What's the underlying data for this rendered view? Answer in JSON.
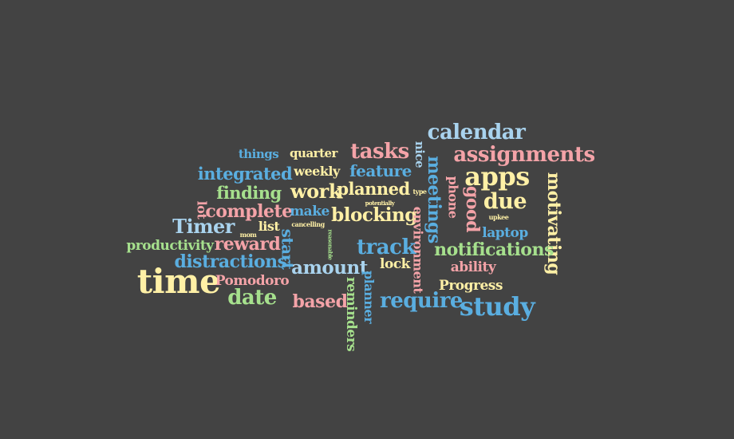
{
  "palette": {
    "background": "#434343",
    "pink": "#f4a3a8",
    "blue": "#5aaee0",
    "green": "#a6e08d",
    "yellow": "#fff0a6",
    "lightblue": "#a9d3ee"
  },
  "words": [
    {
      "text": "calendar",
      "color": "lightblue",
      "weight": 26,
      "rotated": false
    },
    {
      "text": "tasks",
      "color": "pink",
      "weight": 26,
      "rotated": false
    },
    {
      "text": "assignments",
      "color": "pink",
      "weight": 26,
      "rotated": false
    },
    {
      "text": "things",
      "color": "blue",
      "weight": 15,
      "rotated": false
    },
    {
      "text": "quarter",
      "color": "yellow",
      "weight": 15,
      "rotated": false
    },
    {
      "text": "nice",
      "color": "lightblue",
      "weight": 15,
      "rotated": true
    },
    {
      "text": "integrated",
      "color": "blue",
      "weight": 21,
      "rotated": false
    },
    {
      "text": "weekly",
      "color": "yellow",
      "weight": 16,
      "rotated": false
    },
    {
      "text": "feature",
      "color": "blue",
      "weight": 20,
      "rotated": false
    },
    {
      "text": "apps",
      "color": "yellow",
      "weight": 32,
      "rotated": false
    },
    {
      "text": "meetings",
      "color": "blue",
      "weight": 22,
      "rotated": true
    },
    {
      "text": "phone",
      "color": "pink",
      "weight": 16,
      "rotated": true
    },
    {
      "text": "good",
      "color": "pink",
      "weight": 22,
      "rotated": true
    },
    {
      "text": "motivating",
      "color": "yellow",
      "weight": 22,
      "rotated": true
    },
    {
      "text": "finding",
      "color": "green",
      "weight": 21,
      "rotated": false
    },
    {
      "text": "work",
      "color": "yellow",
      "weight": 24,
      "rotated": false
    },
    {
      "text": "planned",
      "color": "yellow",
      "weight": 21,
      "rotated": false
    },
    {
      "text": "type",
      "color": "yellow",
      "weight": 8,
      "rotated": false
    },
    {
      "text": "due",
      "color": "yellow",
      "weight": 27,
      "rotated": false
    },
    {
      "text": "potentially",
      "color": "yellow",
      "weight": 7,
      "rotated": false
    },
    {
      "text": "lot",
      "color": "pink",
      "weight": 16,
      "rotated": true
    },
    {
      "text": "complete",
      "color": "pink",
      "weight": 22,
      "rotated": false
    },
    {
      "text": "make",
      "color": "blue",
      "weight": 17,
      "rotated": false
    },
    {
      "text": "blocking",
      "color": "yellow",
      "weight": 23,
      "rotated": false
    },
    {
      "text": "environment",
      "color": "pink",
      "weight": 16,
      "rotated": true
    },
    {
      "text": "upkee",
      "color": "yellow",
      "weight": 8,
      "rotated": false
    },
    {
      "text": "Timer",
      "color": "lightblue",
      "weight": 24,
      "rotated": false
    },
    {
      "text": "list",
      "color": "yellow",
      "weight": 16,
      "rotated": false
    },
    {
      "text": "cancelling",
      "color": "yellow",
      "weight": 8,
      "rotated": false
    },
    {
      "text": "laptop",
      "color": "blue",
      "weight": 17,
      "rotated": false
    },
    {
      "text": "mom",
      "color": "yellow",
      "weight": 8,
      "rotated": false
    },
    {
      "text": "start",
      "color": "blue",
      "weight": 20,
      "rotated": true
    },
    {
      "text": "reasonable",
      "color": "green",
      "weight": 7,
      "rotated": true
    },
    {
      "text": "productivity",
      "color": "green",
      "weight": 17,
      "rotated": false
    },
    {
      "text": "reward",
      "color": "pink",
      "weight": 22,
      "rotated": false
    },
    {
      "text": "track",
      "color": "blue",
      "weight": 26,
      "rotated": false
    },
    {
      "text": "notifications",
      "color": "green",
      "weight": 22,
      "rotated": false
    },
    {
      "text": "distractions",
      "color": "blue",
      "weight": 22,
      "rotated": false
    },
    {
      "text": "lock",
      "color": "yellow",
      "weight": 17,
      "rotated": false
    },
    {
      "text": "ability",
      "color": "pink",
      "weight": 17,
      "rotated": false
    },
    {
      "text": "amount",
      "color": "lightblue",
      "weight": 23,
      "rotated": false
    },
    {
      "text": "time",
      "color": "yellow",
      "weight": 42,
      "rotated": false
    },
    {
      "text": "Pomodoro",
      "color": "pink",
      "weight": 17,
      "rotated": false
    },
    {
      "text": "planner",
      "color": "blue",
      "weight": 16,
      "rotated": true
    },
    {
      "text": "Progress",
      "color": "yellow",
      "weight": 17,
      "rotated": false
    },
    {
      "text": "date",
      "color": "green",
      "weight": 26,
      "rotated": false
    },
    {
      "text": "based",
      "color": "pink",
      "weight": 22,
      "rotated": false
    },
    {
      "text": "require",
      "color": "blue",
      "weight": 26,
      "rotated": false
    },
    {
      "text": "study",
      "color": "blue",
      "weight": 32,
      "rotated": false
    },
    {
      "text": "reminders",
      "color": "green",
      "weight": 17,
      "rotated": true
    }
  ]
}
